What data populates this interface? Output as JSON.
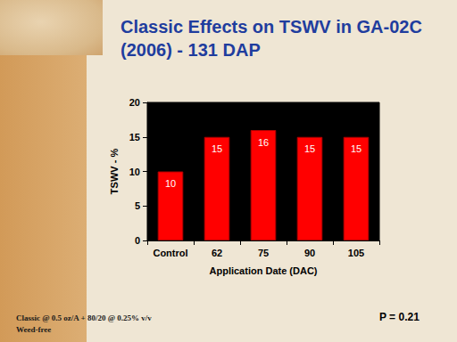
{
  "chart_data": {
    "type": "bar",
    "title": "Classic Effects on TSWV in GA-02C (2006) - 131 DAP",
    "x_label": "Application Date (DAC)",
    "y_label": "TSWV - %",
    "categories": [
      "Control",
      "62",
      "75",
      "90",
      "105"
    ],
    "values": [
      10,
      15,
      16,
      15,
      15
    ],
    "color": "#ff0000",
    "ylim": [
      0,
      20
    ],
    "yticks": [
      0,
      5,
      10,
      15,
      20
    ],
    "grid": false,
    "data_labels": true,
    "annotations": [
      "Classic @ 0.5 oz/A + 80/20 @ 0.25% v/v",
      "Weed-free",
      "P = 0.21"
    ]
  }
}
